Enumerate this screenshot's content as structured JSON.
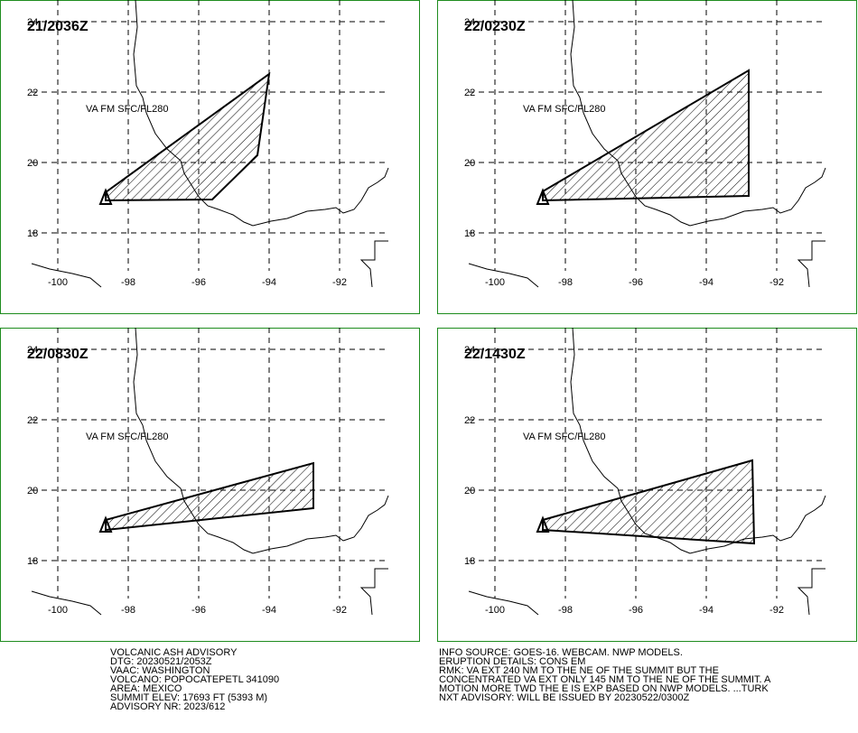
{
  "panels": [
    {
      "time": "21/2036Z",
      "label": "VA FM SFC/FL280",
      "lat_labels": [
        "24",
        "22",
        "20",
        "18"
      ],
      "lon_labels": [
        "-100",
        "-98",
        "-96",
        "-94",
        "-92"
      ]
    },
    {
      "time": "22/0230Z",
      "label": "VA FM SFC/FL280",
      "lat_labels": [
        "24",
        "22",
        "20",
        "18"
      ],
      "lon_labels": [
        "-100",
        "-98",
        "-96",
        "-94",
        "-92"
      ]
    },
    {
      "time": "22/0830Z",
      "label": "VA FM SFC/FL280",
      "lat_labels": [
        "24",
        "22",
        "20",
        "18"
      ],
      "lon_labels": [
        "-100",
        "-98",
        "-96",
        "-94",
        "-92"
      ]
    },
    {
      "time": "22/1430Z",
      "label": "VA FM SFC/FL280",
      "lat_labels": [
        "24",
        "22",
        "20",
        "18"
      ],
      "lon_labels": [
        "-100",
        "-98",
        "-96",
        "-94",
        "-92"
      ]
    }
  ],
  "advisory": {
    "left": [
      "VOLCANIC ASH ADVISORY",
      "DTG: 20230521/2053Z",
      "VAAC: WASHINGTON",
      "VOLCANO: POPOCATEPETL 341090",
      "AREA: MEXICO",
      "SUMMIT ELEV: 17693 FT (5393 M)",
      "ADVISORY NR: 2023/612"
    ],
    "right": [
      "INFO SOURCE: GOES-16. WEBCAM. NWP MODELS.",
      "ERUPTION DETAILS: CONS EM",
      "RMK: VA EXT 240 NM TO THE NE OF THE SUMMIT BUT THE",
      "CONCENTRATED VA EXT ONLY 145 NM TO THE NE OF THE SUMMIT. A",
      "MOTION MORE TWD THE E IS EXP BASED ON NWP MODELS. ...TURK",
      "NXT ADVISORY: WILL BE ISSUED BY 20230522/0300Z"
    ]
  }
}
